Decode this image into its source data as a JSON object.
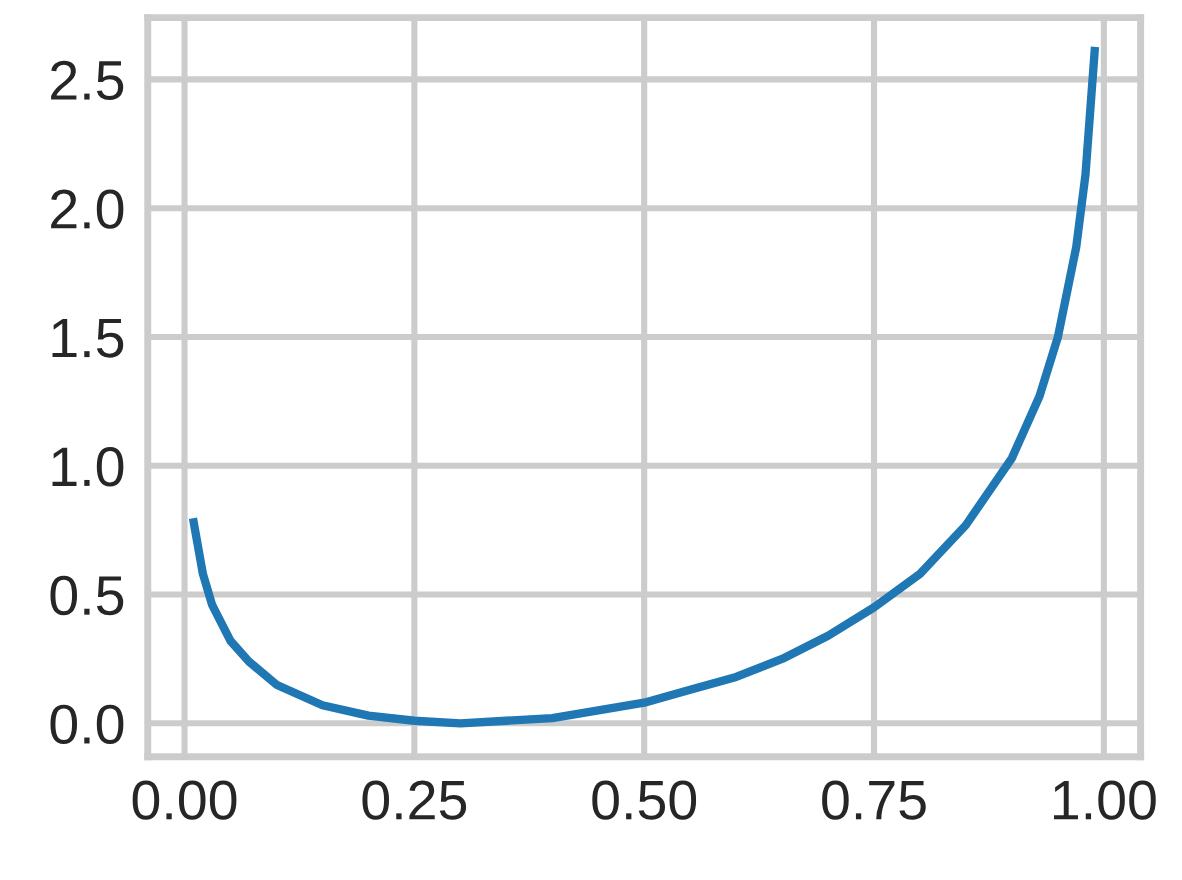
{
  "chart_data": {
    "type": "line",
    "x": [
      0.01,
      0.02,
      0.03,
      0.05,
      0.07,
      0.1,
      0.15,
      0.2,
      0.25,
      0.3,
      0.35,
      0.4,
      0.45,
      0.5,
      0.55,
      0.6,
      0.65,
      0.7,
      0.75,
      0.8,
      0.85,
      0.9,
      0.93,
      0.95,
      0.97,
      0.98,
      0.99
    ],
    "series": [
      {
        "color": "#1f77b4",
        "values": [
          0.78,
          0.58,
          0.46,
          0.32,
          0.24,
          0.15,
          0.07,
          0.03,
          0.01,
          0.0,
          0.01,
          0.02,
          0.05,
          0.08,
          0.13,
          0.18,
          0.25,
          0.34,
          0.45,
          0.58,
          0.77,
          1.03,
          1.27,
          1.5,
          1.85,
          2.13,
          2.61
        ]
      }
    ],
    "xlim": [
      -0.04,
      1.04
    ],
    "ylim": [
      -0.13,
      2.74
    ],
    "xticks": [
      {
        "value": 0,
        "label": "0.00"
      },
      {
        "value": 0.25,
        "label": "0.25"
      },
      {
        "value": 0.5,
        "label": "0.50"
      },
      {
        "value": 0.75,
        "label": "0.75"
      },
      {
        "value": 1,
        "label": "1.00"
      }
    ],
    "yticks": [
      {
        "value": 0,
        "label": "0.0"
      },
      {
        "value": 0.5,
        "label": "0.5"
      },
      {
        "value": 1,
        "label": "1.0"
      },
      {
        "value": 1.5,
        "label": "1.5"
      },
      {
        "value": 2,
        "label": "2.0"
      },
      {
        "value": 2.5,
        "label": "2.5"
      }
    ],
    "grid": true,
    "legend": false,
    "marker": "none",
    "line_style": "solid"
  }
}
